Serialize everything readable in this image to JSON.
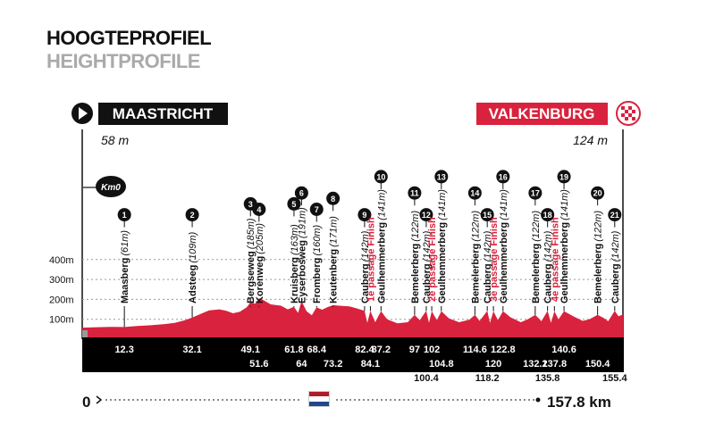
{
  "title": "HOOGTEPROFIEL",
  "subtitle": "HEIGHTPROFILE",
  "start": {
    "city": "MAASTRICHT",
    "elevation": "58 m",
    "km0": "Km0"
  },
  "finish": {
    "city": "VALKENBURG",
    "elevation": "124 m"
  },
  "distance": {
    "start": "0",
    "end": "157.8 km"
  },
  "colors": {
    "profile": "#d9223d",
    "bar": "#000000",
    "accent": "#d9223d",
    "text": "#111111"
  },
  "chart_data": {
    "type": "area",
    "y_ticks": [
      {
        "value": 100,
        "label": "100m"
      },
      {
        "value": 200,
        "label": "200m"
      },
      {
        "value": 300,
        "label": "300m"
      },
      {
        "value": 400,
        "label": "400m"
      }
    ],
    "xlim": [
      0,
      157.8
    ],
    "profile": [
      [
        0,
        58
      ],
      [
        4,
        60
      ],
      [
        8,
        62
      ],
      [
        12.3,
        61
      ],
      [
        16,
        66
      ],
      [
        20,
        70
      ],
      [
        24,
        76
      ],
      [
        27,
        82
      ],
      [
        30,
        95
      ],
      [
        32.1,
        109
      ],
      [
        35,
        130
      ],
      [
        37,
        145
      ],
      [
        40,
        150
      ],
      [
        42,
        143
      ],
      [
        44,
        130
      ],
      [
        46,
        138
      ],
      [
        48,
        160
      ],
      [
        49.1,
        185
      ],
      [
        50.5,
        178
      ],
      [
        51.6,
        205
      ],
      [
        53,
        195
      ],
      [
        55,
        175
      ],
      [
        58,
        168
      ],
      [
        60,
        150
      ],
      [
        61.8,
        163
      ],
      [
        63,
        132
      ],
      [
        64,
        191
      ],
      [
        65.5,
        140
      ],
      [
        67,
        120
      ],
      [
        68.4,
        160
      ],
      [
        70,
        148
      ],
      [
        71.5,
        160
      ],
      [
        73.2,
        171
      ],
      [
        75,
        168
      ],
      [
        78,
        165
      ],
      [
        80,
        155
      ],
      [
        82.4,
        142
      ],
      [
        83.2,
        82
      ],
      [
        84.1,
        142
      ],
      [
        85.5,
        85
      ],
      [
        87.2,
        141
      ],
      [
        89,
        100
      ],
      [
        92,
        80
      ],
      [
        95,
        85
      ],
      [
        97,
        122
      ],
      [
        98.5,
        95
      ],
      [
        100.4,
        142
      ],
      [
        101.2,
        82
      ],
      [
        102,
        141
      ],
      [
        103.5,
        95
      ],
      [
        104.8,
        141
      ],
      [
        107,
        105
      ],
      [
        110,
        85
      ],
      [
        113,
        98
      ],
      [
        114.6,
        122
      ],
      [
        116,
        92
      ],
      [
        118.2,
        142
      ],
      [
        119,
        82
      ],
      [
        120,
        141
      ],
      [
        121.3,
        95
      ],
      [
        122.8,
        141
      ],
      [
        125,
        110
      ],
      [
        128,
        85
      ],
      [
        130,
        100
      ],
      [
        132.2,
        122
      ],
      [
        134,
        90
      ],
      [
        135.8,
        142
      ],
      [
        136.8,
        82
      ],
      [
        137.8,
        141
      ],
      [
        139,
        100
      ],
      [
        140.6,
        141
      ],
      [
        143,
        118
      ],
      [
        146,
        92
      ],
      [
        148,
        100
      ],
      [
        150.4,
        122
      ],
      [
        152,
        108
      ],
      [
        153.5,
        90
      ],
      [
        155.4,
        142
      ],
      [
        156.5,
        115
      ],
      [
        157.8,
        124
      ]
    ],
    "climbs": [
      {
        "num": "1",
        "name": "Maasberg",
        "elev": "(61m)",
        "km": 12.3,
        "finish": false
      },
      {
        "num": "2",
        "name": "Adsteeg",
        "elev": "(109m)",
        "km": 32.1,
        "finish": false
      },
      {
        "num": "3",
        "name": "Bergseweg",
        "elev": "(185m)",
        "km": 49.1,
        "finish": false
      },
      {
        "num": "4",
        "name": "Korenweg",
        "elev": "(205m)",
        "km": 51.6,
        "finish": false
      },
      {
        "num": "5",
        "name": "Kruisberg",
        "elev": "(163m)",
        "km": 61.8,
        "finish": false
      },
      {
        "num": "6",
        "name": "Eyserbosweg",
        "elev": "(191m)",
        "km": 64,
        "finish": false
      },
      {
        "num": "7",
        "name": "Fromberg",
        "elev": "(160m)",
        "km": 68.4,
        "finish": false
      },
      {
        "num": "8",
        "name": "Keutenberg",
        "elev": "(171m)",
        "km": 73.2,
        "finish": false
      },
      {
        "num": "9",
        "name": "Cauberg",
        "elev": "(142m)",
        "km": 82.4,
        "finish": false
      },
      {
        "num": "",
        "name": "1e passage Finish",
        "elev": "",
        "km": 84.1,
        "finish": true
      },
      {
        "num": "10",
        "name": "Geulhemmerberg",
        "elev": "(141m)",
        "km": 87.2,
        "finish": false
      },
      {
        "num": "11",
        "name": "Bemelerberg",
        "elev": "(122m)",
        "km": 97,
        "finish": false
      },
      {
        "num": "12",
        "name": "Cauberg",
        "elev": "(142m)",
        "km": 100.4,
        "finish": false
      },
      {
        "num": "",
        "name": "2e passage Finish",
        "elev": "",
        "km": 102,
        "finish": true
      },
      {
        "num": "13",
        "name": "Geulhemmerberg",
        "elev": "(141m)",
        "km": 104.8,
        "finish": false
      },
      {
        "num": "14",
        "name": "Bemelerberg",
        "elev": "(122m)",
        "km": 114.6,
        "finish": false
      },
      {
        "num": "15",
        "name": "Cauberg",
        "elev": "(142m)",
        "km": 118.2,
        "finish": false
      },
      {
        "num": "",
        "name": "3e passage Finish",
        "elev": "",
        "km": 120,
        "finish": true
      },
      {
        "num": "16",
        "name": "Geulhemmerberg",
        "elev": "(141m)",
        "km": 122.8,
        "finish": false
      },
      {
        "num": "17",
        "name": "Bemelerberg",
        "elev": "(122m)",
        "km": 132.2,
        "finish": false
      },
      {
        "num": "18",
        "name": "Cauberg",
        "elev": "(142m)",
        "km": 135.8,
        "finish": false
      },
      {
        "num": "",
        "name": "4e passage Finish",
        "elev": "",
        "km": 137.8,
        "finish": true
      },
      {
        "num": "19",
        "name": "Geulhemmerberg",
        "elev": "(141m)",
        "km": 140.6,
        "finish": false
      },
      {
        "num": "20",
        "name": "Bemelerberg",
        "elev": "(122m)",
        "km": 150.4,
        "finish": false
      },
      {
        "num": "21",
        "name": "Cauberg",
        "elev": "(142m)",
        "km": 155.4,
        "finish": false
      }
    ],
    "km_labels": {
      "row1": [
        "12.3",
        "32.1",
        "49.1",
        "61.8",
        "68.4",
        "82.4",
        "87.2",
        "97",
        "102",
        "114.6",
        "122.8",
        "140.6"
      ],
      "row2": [
        "51.6",
        "64",
        "73.2",
        "84.1",
        "104.8",
        "120",
        "132.2",
        "137.8",
        "150.4"
      ],
      "row3": [
        "100.4",
        "118.2",
        "135.8",
        "155.4"
      ]
    }
  }
}
